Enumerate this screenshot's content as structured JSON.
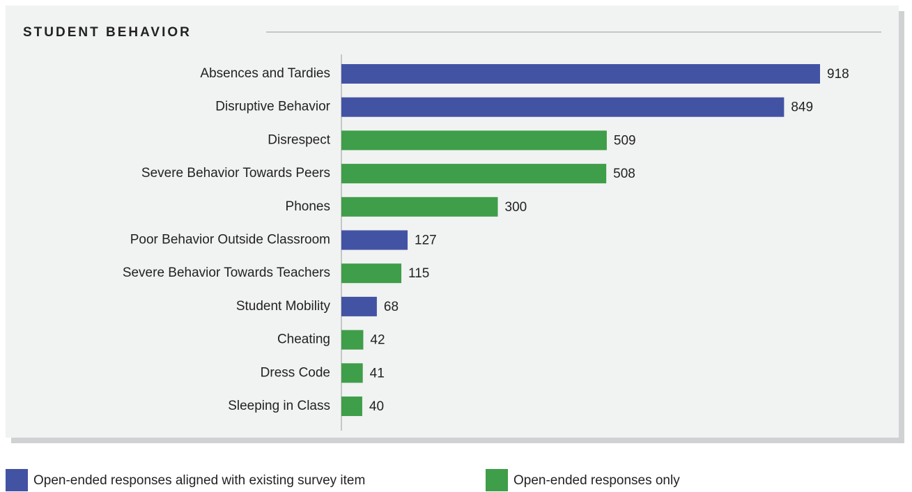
{
  "chart_data": {
    "type": "bar",
    "orientation": "horizontal",
    "title": "STUDENT BEHAVIOR",
    "categories": [
      "Absences and Tardies",
      "Disruptive Behavior",
      "Disrespect",
      "Severe Behavior Towards Peers",
      "Phones",
      "Poor Behavior Outside Classroom",
      "Severe Behavior Towards Teachers",
      "Student Mobility",
      "Cheating",
      "Dress Code",
      "Sleeping in Class"
    ],
    "series": [
      {
        "name": "Open-ended responses aligned with existing survey item",
        "color": "#4353a4",
        "values": [
          918,
          849,
          null,
          null,
          null,
          127,
          null,
          68,
          null,
          null,
          null
        ]
      },
      {
        "name": "Open-ended responses only",
        "color": "#3f9e49",
        "values": [
          null,
          null,
          509,
          508,
          300,
          null,
          115,
          null,
          42,
          41,
          40
        ]
      }
    ],
    "legend": "bottom-left",
    "grid": false
  }
}
